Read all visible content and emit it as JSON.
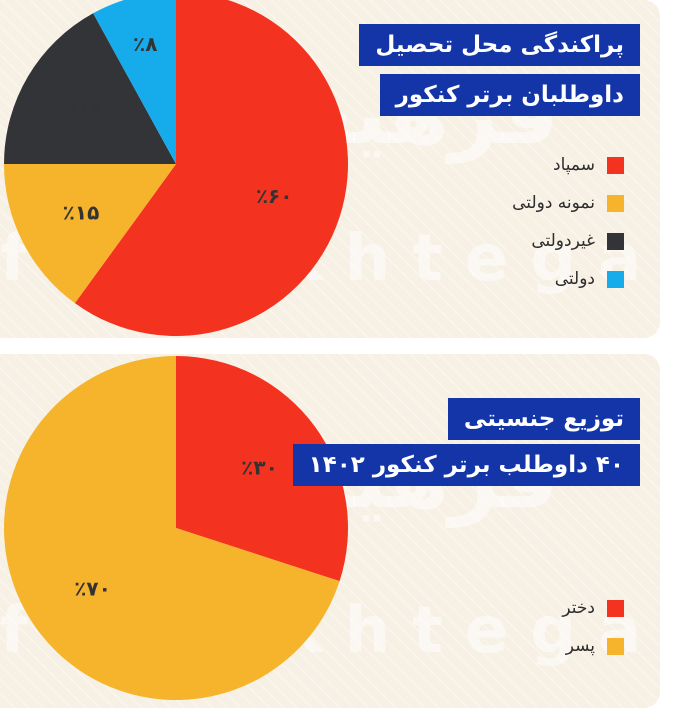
{
  "charts": [
    {
      "title_line1": "پراکندگی محل تحصیل",
      "title_line2": "داوطلبان برتر کنکور",
      "legend": [
        {
          "label": "سمپاد",
          "color": "#f3321f"
        },
        {
          "label": "نمونه دولتی",
          "color": "#f6b32c"
        },
        {
          "label": "غیردولتی",
          "color": "#333438"
        },
        {
          "label": "دولتی",
          "color": "#16acec"
        }
      ]
    },
    {
      "title_line1": "توزیع جنسیتی",
      "title_line2": "۴۰ داوطلب برتر کنکور ۱۴۰۲",
      "legend": [
        {
          "label": "دختر",
          "color": "#f3321f"
        },
        {
          "label": "پسر",
          "color": "#f6b32c"
        }
      ]
    }
  ],
  "watermark": {
    "fa": "فرهیختگان",
    "en": "farhikhtegan"
  },
  "chart_data": [
    {
      "type": "pie",
      "title": "پراکندگی محل تحصیل داوطلبان برتر کنکور",
      "slices": [
        {
          "label": "سمپاد",
          "value": 60,
          "display": "٪۶۰",
          "color": "#f3321f"
        },
        {
          "label": "نمونه دولتی",
          "value": 15,
          "display": "٪۱۵",
          "color": "#f6b32c"
        },
        {
          "label": "غیردولتی",
          "value": 17,
          "display": "٪۱۷",
          "color": "#333438"
        },
        {
          "label": "دولتی",
          "value": 8,
          "display": "٪۸",
          "color": "#16acec"
        }
      ],
      "legend_position": "right"
    },
    {
      "type": "pie",
      "title": "توزیع جنسیتی ۴۰ داوطلب برتر کنکور ۱۴۰۲",
      "slices": [
        {
          "label": "دختر",
          "value": 30,
          "display": "٪۳۰",
          "color": "#f3321f"
        },
        {
          "label": "پسر",
          "value": 70,
          "display": "٪۷۰",
          "color": "#f6b32c"
        }
      ],
      "legend_position": "bottom-right"
    }
  ]
}
